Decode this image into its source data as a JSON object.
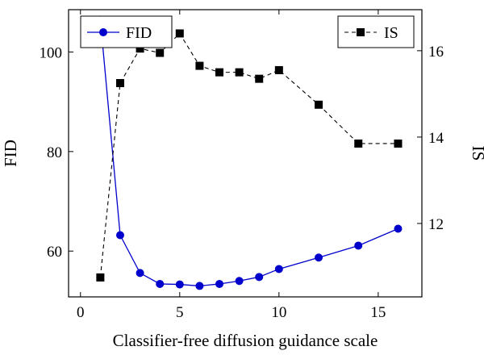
{
  "chart_data": {
    "type": "line",
    "title": "",
    "xlabel": "Classifier-free diffusion guidance scale",
    "xlim": [
      -0.6,
      17.2
    ],
    "xticks": [
      0,
      5,
      10,
      15
    ],
    "grid": false,
    "y_left": {
      "label": "FID",
      "lim": [
        50.8,
        108.5
      ],
      "ticks": [
        60,
        80,
        100
      ]
    },
    "y_right": {
      "label": "IS",
      "lim": [
        10.3,
        16.95
      ],
      "ticks": [
        12,
        14,
        16
      ]
    },
    "series": [
      {
        "name": "FID",
        "axis": "left",
        "color": "#0000cc",
        "marker": "circle",
        "line_style": "solid",
        "x": [
          1,
          2,
          3,
          4,
          5,
          6,
          7,
          8,
          9,
          10,
          12,
          14,
          16
        ],
        "y": [
          106.5,
          63.2,
          55.6,
          53.4,
          53.3,
          53.0,
          53.4,
          54.0,
          54.8,
          56.4,
          58.7,
          61.1,
          64.5
        ]
      },
      {
        "name": "IS",
        "axis": "right",
        "color": "#000000",
        "marker": "square",
        "line_style": "dashed",
        "x": [
          1,
          2,
          3,
          4,
          5,
          6,
          7,
          8,
          9,
          10,
          12,
          14,
          16
        ],
        "y": [
          10.75,
          15.25,
          16.05,
          15.95,
          16.4,
          15.65,
          15.5,
          15.5,
          15.35,
          15.55,
          14.75,
          13.85,
          13.85
        ]
      }
    ],
    "legend": [
      {
        "label": "FID",
        "placement": "top-left"
      },
      {
        "label": "IS",
        "placement": "top-right"
      }
    ]
  }
}
